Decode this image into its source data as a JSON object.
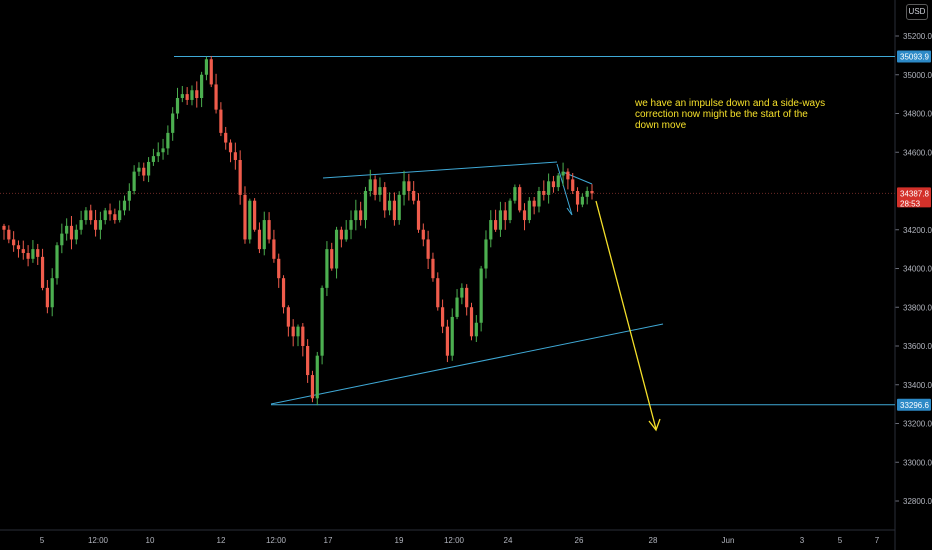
{
  "currency_button": "USD",
  "chart_data": {
    "type": "candlestick",
    "title": "",
    "xlabel": "",
    "ylabel": "",
    "ylim": [
      32550,
      35450
    ],
    "y_ticks": [
      "32800.0",
      "33000.0",
      "33200.0",
      "33400.0",
      "33600.0",
      "33800.0",
      "34000.0",
      "34200.0",
      "34600.0",
      "34800.0",
      "35000.0",
      "35200.0"
    ],
    "x_ticks": [
      "5",
      "12:00",
      "10",
      "12",
      "12:00",
      "17",
      "19",
      "12:00",
      "24",
      "26",
      "28",
      "Jun",
      "3",
      "5",
      "7"
    ],
    "grid": false,
    "series": [
      {
        "values": [
          34200,
          34150,
          34120,
          34100,
          34080,
          34050,
          34100,
          34060,
          33900,
          33800,
          33950,
          34120,
          34180,
          34220,
          34150,
          34200,
          34250,
          34300,
          34250,
          34200,
          34250,
          34300,
          34280,
          34250,
          34300,
          34350,
          34400,
          34500,
          34520,
          34480,
          34550,
          34580,
          34600,
          34620,
          34700,
          34800,
          34880,
          34900,
          34870,
          34920,
          34880,
          35000,
          35080,
          34950,
          34820,
          34700,
          34650,
          34600,
          34560,
          34380,
          34150,
          34350,
          34200,
          34100,
          34250,
          34150,
          34050,
          33950,
          33800,
          33700,
          33650,
          33700,
          33600,
          33450,
          33330,
          33550,
          33900,
          34100,
          34000,
          34200,
          34150,
          34200,
          34250,
          34300,
          34250,
          34400,
          34460,
          34380,
          34420,
          34300,
          34350,
          34250,
          34380,
          34450,
          34400,
          34350,
          34200,
          34150,
          34050,
          33950,
          33800,
          33700,
          33550,
          33750,
          33850,
          33900,
          33800,
          33650,
          33720,
          34000,
          34150,
          34250,
          34200,
          34300,
          34250,
          34350,
          34420,
          34300,
          34250,
          34350,
          34320,
          34400,
          34380,
          34450,
          34420,
          34480,
          34500,
          34460,
          34400,
          34330,
          34370,
          34400,
          34387.8
        ],
        "x_range": [
          "4 May",
          "26 May"
        ],
        "resolution": "2h"
      }
    ],
    "drawings": {
      "resistance_level": 35093.9,
      "support_level": 33296.6,
      "annotation": "we have an impulse down and a side-ways correction now might be the start of the down move",
      "projection_arrow": "down"
    },
    "price_labels": {
      "top_level": "35093.9",
      "current_price": "34387.8",
      "countdown": "28:53",
      "bottom_level": "33296.6"
    }
  }
}
